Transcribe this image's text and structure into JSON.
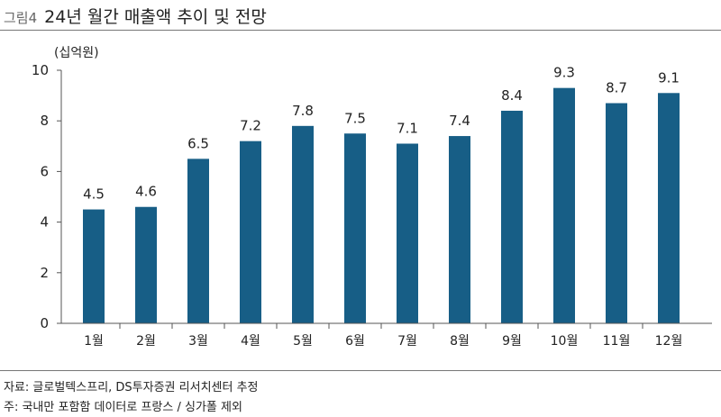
{
  "figure": {
    "number": "그림4",
    "title": "24년 월간 매출액 추이 및 전망"
  },
  "colors": {
    "bar": "#175E86",
    "axis": "#555555",
    "rule": "#777777"
  },
  "chart_data": {
    "type": "bar",
    "title": "24년 월간 매출액 추이 및 전망",
    "unit_label": "(십억원)",
    "xlabel": "",
    "ylabel": "(십억원)",
    "ylim": [
      0,
      10
    ],
    "yticks": [
      0,
      2,
      4,
      6,
      8,
      10
    ],
    "grid": false,
    "categories": [
      "1월",
      "2월",
      "3월",
      "4월",
      "5월",
      "6월",
      "7월",
      "8월",
      "9월",
      "10월",
      "11월",
      "12월"
    ],
    "values": [
      4.5,
      4.6,
      6.5,
      7.2,
      7.8,
      7.5,
      7.1,
      7.4,
      8.4,
      9.3,
      8.7,
      9.1
    ],
    "data_labels": [
      "4.5",
      "4.6",
      "6.5",
      "7.2",
      "7.8",
      "7.5",
      "7.1",
      "7.4",
      "8.4",
      "9.3",
      "8.7",
      "9.1"
    ]
  },
  "notes": {
    "source": "자료: 글로벌텍스프리, DS투자증권 리서치센터 추정",
    "footnote": "주: 국내만 포함함 데이터로 프랑스 / 싱가폴 제외"
  }
}
